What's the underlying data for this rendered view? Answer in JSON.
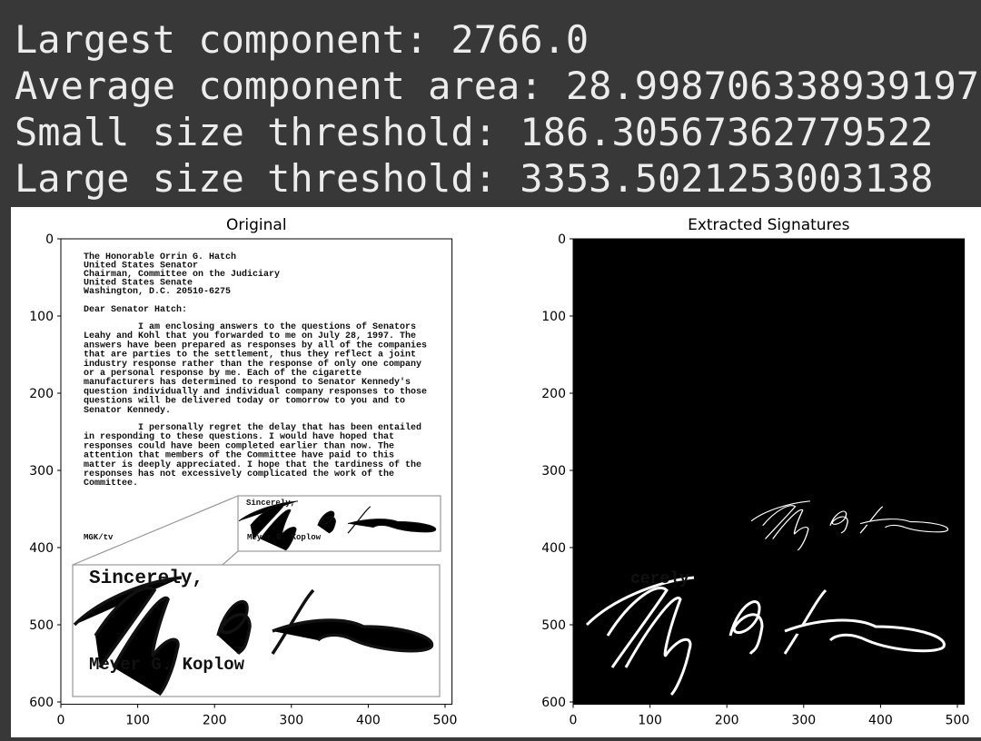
{
  "console": {
    "lines": [
      "Largest component: 2766.0",
      "Average component area: 28.998706338939197",
      "Small size threshold: 186.30567362779522",
      "Large size threshold: 3353.5021253003138"
    ]
  },
  "panels": [
    {
      "title": "Original",
      "xlim": [
        0,
        509
      ],
      "ylim": [
        0,
        603
      ],
      "xticks": [
        0,
        100,
        200,
        300,
        400,
        500
      ],
      "yticks": [
        0,
        100,
        200,
        300,
        400,
        500,
        600
      ]
    },
    {
      "title": "Extracted Signatures",
      "xlim": [
        0,
        509
      ],
      "ylim": [
        0,
        603
      ],
      "xticks": [
        0,
        100,
        200,
        300,
        400,
        500
      ],
      "yticks": [
        0,
        100,
        200,
        300,
        400,
        500,
        600
      ]
    }
  ],
  "letter": {
    "address": [
      "The Honorable Orrin G. Hatch",
      "United States Senator",
      "Chairman, Committee on the Judiciary",
      "United States Senate",
      "Washington, D.C.  20510-6275"
    ],
    "salutation": "Dear Senator Hatch:",
    "paragraphs": [
      [
        "I am enclosing answers to the questions of Senators",
        "Leahy and Kohl that you forwarded to me on July 28, 1997.  The",
        "answers have been prepared as responses by all of the companies",
        "that are parties to the settlement, thus they reflect a joint",
        "industry response rather than the response of only one company",
        "or a personal response by me.  Each of the cigarette",
        "manufacturers has determined to respond to Senator Kennedy's",
        "question individually and individual company responses to those",
        "questions will be delivered today or tomorrow to you and to",
        "Senator Kennedy."
      ],
      [
        "I personally regret the delay that has been entailed",
        "in responding to these questions.  I would have hoped that",
        "responses could have been completed earlier than now.  The",
        "attention that members of the Committee have paid to this",
        "matter is deeply appreciated.  I hope that the tardiness of the",
        "responses has not excessively complicated the work of the",
        "Committee."
      ]
    ],
    "closing": "Sincerely,",
    "initials": "MGK/tv",
    "signature_name": "Meyer G. Koplow"
  },
  "extracted_text": "cerely"
}
